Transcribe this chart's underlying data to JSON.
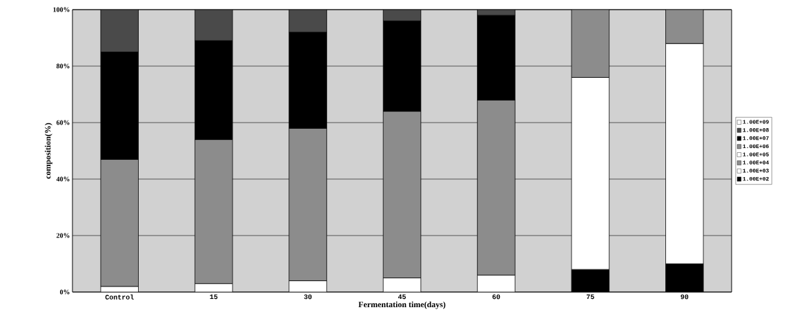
{
  "chart_data": {
    "type": "bar",
    "stacked": true,
    "xlabel": "Fermentation time(days)",
    "ylabel": "composition(%)",
    "categories": [
      "Control",
      "15",
      "30",
      "45",
      "60",
      "75",
      "90"
    ],
    "series": [
      {
        "name": "1.00E+02",
        "color": "#000000",
        "values": [
          0,
          0,
          0,
          0,
          0,
          8,
          10
        ]
      },
      {
        "name": "1.00E+03",
        "color": "#ffffff",
        "values": [
          0,
          0,
          0,
          0,
          0,
          68,
          78
        ]
      },
      {
        "name": "1.00E+04",
        "color": "#8c8c8c",
        "values": [
          0,
          0,
          0,
          0,
          0,
          24,
          12
        ]
      },
      {
        "name": "1.00E+05",
        "color": "#ffffff",
        "values": [
          2,
          3,
          4,
          5,
          6,
          0,
          0
        ]
      },
      {
        "name": "1.00E+06",
        "color": "#8c8c8c",
        "values": [
          45,
          51,
          54,
          59,
          62,
          0,
          0
        ]
      },
      {
        "name": "1.00E+07",
        "color": "#000000",
        "values": [
          38,
          35,
          34,
          32,
          30,
          0,
          0
        ]
      },
      {
        "name": "1.00E+08",
        "color": "#4a4a4a",
        "values": [
          15,
          11,
          8,
          4,
          2,
          0,
          0
        ]
      },
      {
        "name": "1.00E+09",
        "color": "#ffffff",
        "values": [
          0,
          0,
          0,
          0,
          0,
          0,
          0
        ]
      }
    ],
    "ylim": [
      0,
      100
    ],
    "yticks": [
      {
        "value": 0,
        "label": "0%"
      },
      {
        "value": 20,
        "label": "20%"
      },
      {
        "value": 40,
        "label": "40%"
      },
      {
        "value": 60,
        "label": "60%"
      },
      {
        "value": 80,
        "label": "80%"
      },
      {
        "value": 100,
        "label": "100%"
      }
    ],
    "grid": "y",
    "legend": "right"
  }
}
